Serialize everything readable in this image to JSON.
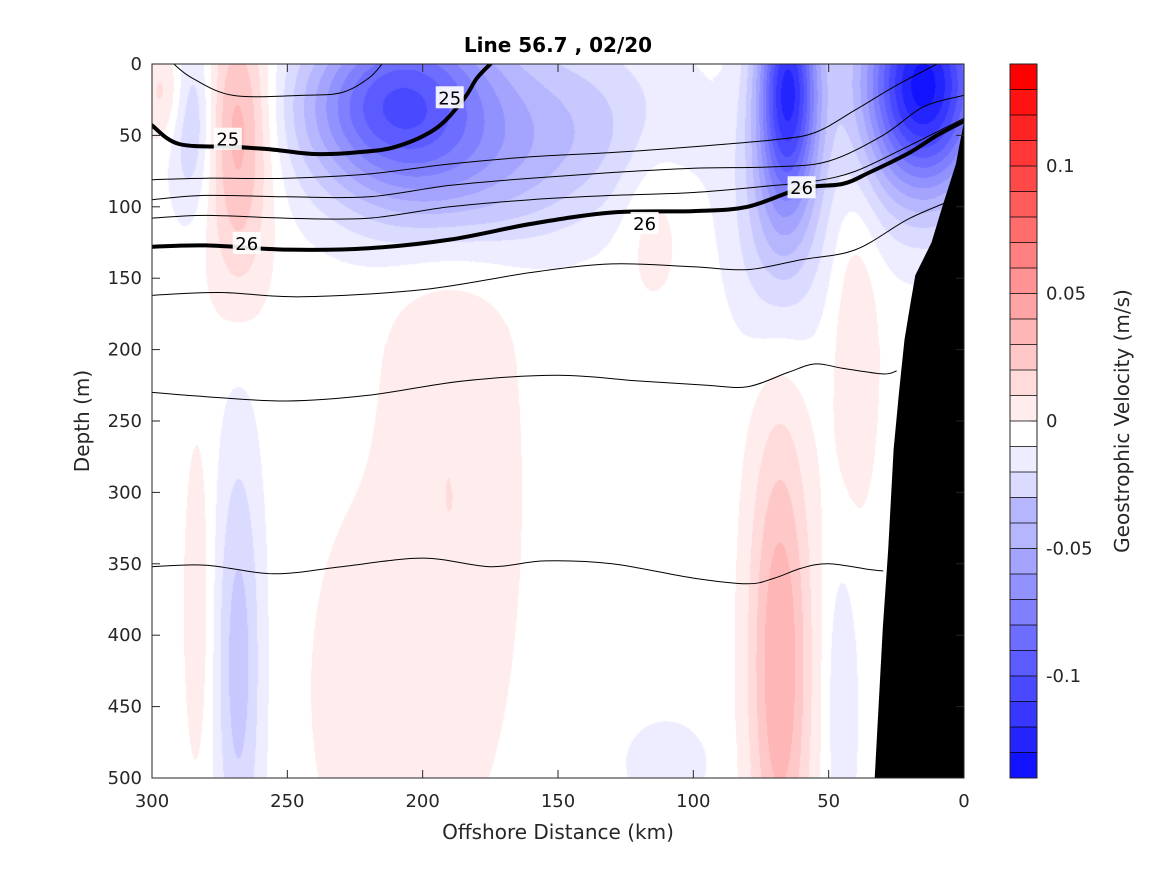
{
  "chart_data": {
    "type": "heatmap",
    "title": "Line 56.7 , 02/20",
    "xlabel": "Offshore Distance (km)",
    "ylabel": "Depth (m)",
    "xlim": [
      300,
      0
    ],
    "ylim": [
      0,
      500
    ],
    "x_reversed": true,
    "y_reversed": true,
    "xticks": [
      300,
      250,
      200,
      150,
      100,
      50,
      0
    ],
    "yticks": [
      0,
      50,
      100,
      150,
      200,
      250,
      300,
      350,
      400,
      450,
      500
    ],
    "colorbar": {
      "label": "Geostrophic Velocity (m/s)",
      "range": [
        -0.14,
        0.14
      ],
      "step": 0.01,
      "ticks": [
        {
          "value": 0.1,
          "label": "0.1"
        },
        {
          "value": 0.05,
          "label": "0.05"
        },
        {
          "value": 0,
          "label": "0"
        },
        {
          "value": -0.05,
          "label": "-0.05"
        },
        {
          "value": -0.1,
          "label": "-0.1"
        }
      ],
      "colors": {
        "negative": "#0000ff",
        "zero": "#ffffff",
        "positive": "#ff0000"
      }
    },
    "velocity_field": [
      {
        "x": 295,
        "z": 20,
        "v": 0.02,
        "sx": 6,
        "sz": 25
      },
      {
        "x": 285,
        "z": 40,
        "v": -0.03,
        "sx": 6,
        "sz": 45
      },
      {
        "x": 268,
        "z": 40,
        "v": 0.04,
        "sx": 9,
        "sz": 55
      },
      {
        "x": 268,
        "z": 130,
        "v": 0.012,
        "sx": 8,
        "sz": 45
      },
      {
        "x": 225,
        "z": 30,
        "v": -0.04,
        "sx": 20,
        "sz": 40
      },
      {
        "x": 200,
        "z": 25,
        "v": -0.07,
        "sx": 22,
        "sz": 50
      },
      {
        "x": 185,
        "z": 90,
        "v": -0.02,
        "sx": 30,
        "sz": 35
      },
      {
        "x": 150,
        "z": 40,
        "v": -0.03,
        "sx": 30,
        "sz": 45
      },
      {
        "x": 115,
        "z": 110,
        "v": 0.012,
        "sx": 8,
        "sz": 40
      },
      {
        "x": 65,
        "z": 15,
        "v": -0.11,
        "sx": 8,
        "sz": 55
      },
      {
        "x": 68,
        "z": 110,
        "v": -0.03,
        "sx": 12,
        "sz": 60
      },
      {
        "x": 15,
        "z": 15,
        "v": -0.13,
        "sx": 16,
        "sz": 55
      },
      {
        "x": 40,
        "z": 200,
        "v": 0.015,
        "sx": 6,
        "sz": 80
      },
      {
        "x": 190,
        "z": 300,
        "v": 0.015,
        "sx": 18,
        "sz": 160
      },
      {
        "x": 68,
        "z": 420,
        "v": 0.045,
        "sx": 8,
        "sz": 120
      },
      {
        "x": 268,
        "z": 420,
        "v": -0.03,
        "sx": 6,
        "sz": 110
      },
      {
        "x": 283,
        "z": 380,
        "v": 0.012,
        "sx": 4,
        "sz": 90
      },
      {
        "x": 225,
        "z": 440,
        "v": 0.012,
        "sx": 12,
        "sz": 80
      },
      {
        "x": 110,
        "z": 490,
        "v": -0.015,
        "sx": 10,
        "sz": 20
      },
      {
        "x": 45,
        "z": 450,
        "v": -0.015,
        "sx": 4,
        "sz": 70
      }
    ],
    "density_contours": [
      {
        "value": 25,
        "bold": true,
        "labels": [
          {
            "x": 272,
            "z": 53,
            "text": "25"
          },
          {
            "x": 190,
            "z": 24,
            "text": "25"
          }
        ],
        "points": [
          [
            300,
            43
          ],
          [
            290,
            56
          ],
          [
            270,
            58
          ],
          [
            255,
            60
          ],
          [
            240,
            63
          ],
          [
            225,
            62
          ],
          [
            210,
            58
          ],
          [
            195,
            45
          ],
          [
            185,
            25
          ],
          [
            180,
            10
          ],
          [
            175,
            0
          ]
        ]
      },
      {
        "value": 26,
        "bold": true,
        "labels": [
          {
            "x": 265,
            "z": 126,
            "text": "26"
          },
          {
            "x": 118,
            "z": 112,
            "text": "26"
          },
          {
            "x": 60,
            "z": 87,
            "text": "26"
          }
        ],
        "points": [
          [
            300,
            128
          ],
          [
            280,
            127
          ],
          [
            250,
            130
          ],
          [
            220,
            129
          ],
          [
            190,
            123
          ],
          [
            160,
            112
          ],
          [
            130,
            104
          ],
          [
            100,
            103
          ],
          [
            80,
            100
          ],
          [
            60,
            87
          ],
          [
            45,
            84
          ],
          [
            35,
            76
          ],
          [
            20,
            62
          ],
          [
            10,
            50
          ],
          [
            0,
            40
          ]
        ]
      },
      {
        "value": 25.3,
        "bold": false,
        "labels": [],
        "points": [
          [
            292,
            0
          ],
          [
            285,
            10
          ],
          [
            270,
            22
          ],
          [
            245,
            22
          ],
          [
            230,
            20
          ],
          [
            220,
            10
          ],
          [
            215,
            0
          ]
        ]
      },
      {
        "value": 25.5,
        "bold": false,
        "labels": [],
        "points": [
          [
            300,
            81
          ],
          [
            280,
            80
          ],
          [
            250,
            80
          ],
          [
            220,
            77
          ],
          [
            190,
            70
          ],
          [
            160,
            65
          ],
          [
            130,
            62
          ],
          [
            100,
            58
          ],
          [
            70,
            53
          ],
          [
            55,
            48
          ],
          [
            40,
            32
          ],
          [
            25,
            15
          ],
          [
            10,
            0
          ]
        ]
      },
      {
        "value": 25.7,
        "bold": false,
        "labels": [],
        "points": [
          [
            300,
            95
          ],
          [
            280,
            92
          ],
          [
            250,
            93
          ],
          [
            220,
            93
          ],
          [
            190,
            85
          ],
          [
            160,
            80
          ],
          [
            130,
            76
          ],
          [
            100,
            73
          ],
          [
            70,
            72
          ],
          [
            50,
            68
          ],
          [
            30,
            50
          ],
          [
            15,
            30
          ],
          [
            0,
            22
          ]
        ]
      },
      {
        "value": 25.9,
        "bold": false,
        "labels": [],
        "points": [
          [
            300,
            108
          ],
          [
            280,
            106
          ],
          [
            250,
            108
          ],
          [
            220,
            108
          ],
          [
            190,
            100
          ],
          [
            160,
            95
          ],
          [
            130,
            92
          ],
          [
            100,
            90
          ],
          [
            70,
            85
          ],
          [
            55,
            82
          ],
          [
            40,
            75
          ],
          [
            20,
            57
          ],
          [
            0,
            38
          ]
        ]
      },
      {
        "value": 26.3,
        "bold": false,
        "labels": [],
        "points": [
          [
            300,
            162
          ],
          [
            275,
            160
          ],
          [
            245,
            163
          ],
          [
            200,
            158
          ],
          [
            160,
            146
          ],
          [
            130,
            140
          ],
          [
            100,
            142
          ],
          [
            80,
            144
          ],
          [
            60,
            137
          ],
          [
            40,
            130
          ],
          [
            20,
            108
          ],
          [
            0,
            92
          ]
        ]
      },
      {
        "value": 26.5,
        "bold": false,
        "labels": [],
        "points": [
          [
            300,
            230
          ],
          [
            280,
            233
          ],
          [
            250,
            236
          ],
          [
            220,
            232
          ],
          [
            185,
            222
          ],
          [
            150,
            218
          ],
          [
            120,
            222
          ],
          [
            95,
            225
          ],
          [
            80,
            226
          ],
          [
            65,
            216
          ],
          [
            55,
            210
          ],
          [
            45,
            213
          ],
          [
            30,
            217
          ],
          [
            25,
            215
          ]
        ]
      },
      {
        "value": 26.7,
        "bold": false,
        "labels": [],
        "points": [
          [
            300,
            352
          ],
          [
            280,
            351
          ],
          [
            255,
            357
          ],
          [
            230,
            352
          ],
          [
            200,
            346
          ],
          [
            175,
            352
          ],
          [
            155,
            348
          ],
          [
            130,
            350
          ],
          [
            100,
            360
          ],
          [
            80,
            364
          ],
          [
            70,
            360
          ],
          [
            60,
            353
          ],
          [
            50,
            350
          ],
          [
            35,
            354
          ],
          [
            30,
            355
          ]
        ]
      }
    ],
    "bathymetry": [
      [
        33,
        500
      ],
      [
        30,
        395
      ],
      [
        28,
        340
      ],
      [
        26,
        270
      ],
      [
        24,
        230
      ],
      [
        22,
        193
      ],
      [
        20,
        170
      ],
      [
        18,
        148
      ],
      [
        12,
        125
      ],
      [
        8,
        100
      ],
      [
        3,
        70
      ],
      [
        0,
        40
      ],
      [
        0,
        500
      ]
    ]
  }
}
